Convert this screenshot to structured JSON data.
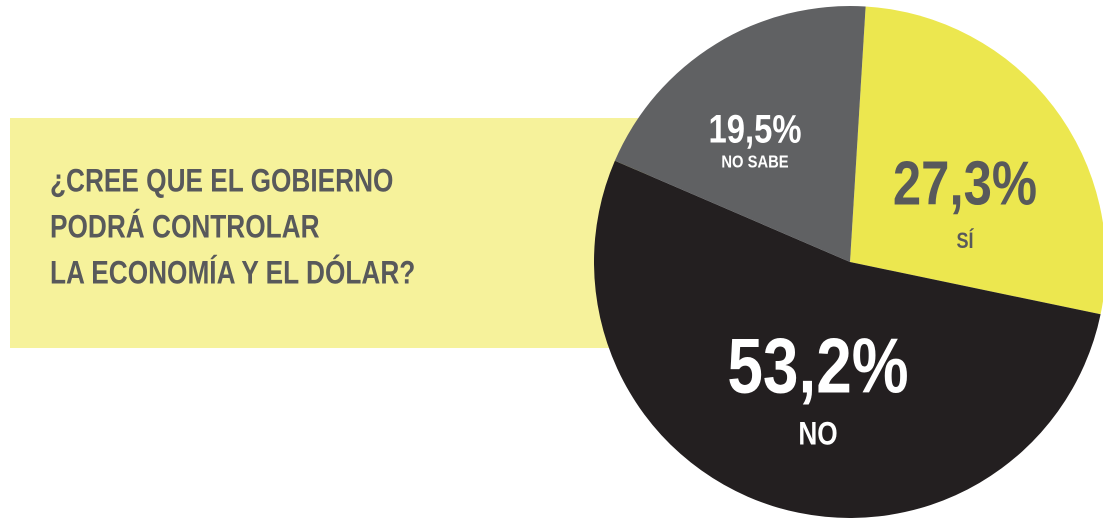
{
  "chart_data": {
    "type": "pie",
    "title": [
      "¿CREE QUE EL GOBIERNO",
      "PODRÁ CONTROLAR",
      "LA ECONOMÍA Y EL DÓLAR?"
    ],
    "categories": [
      "SÍ",
      "NO",
      "NO SABE"
    ],
    "values": [
      27.3,
      53.2,
      19.5
    ],
    "value_labels": [
      "27,3%",
      "53,2%",
      "19,5%"
    ],
    "colors": [
      "#ece74f",
      "#231f20",
      "#606163"
    ]
  }
}
